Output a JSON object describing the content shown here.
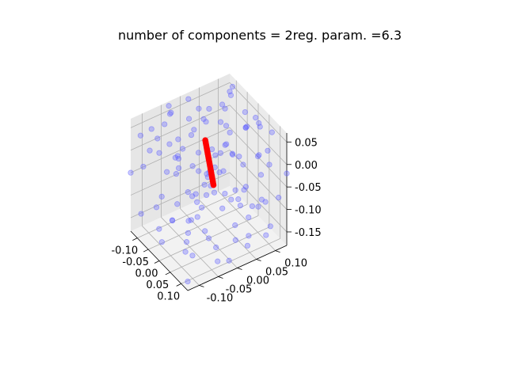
{
  "chart_data": {
    "type": "scatter",
    "projection": "3d",
    "title": "number of components = 2reg. param. =6.3",
    "grid": true,
    "xlim": [
      -0.13,
      0.13
    ],
    "ylim": [
      -0.13,
      0.13
    ],
    "zlim": [
      -0.18,
      0.07
    ],
    "x_ticks": [
      "-0.10",
      "-0.05",
      "0.00",
      "0.05",
      "0.10"
    ],
    "y_ticks": [
      "-0.10",
      "-0.05",
      "0.00",
      "0.05",
      "0.10"
    ],
    "z_ticks": [
      "-0.15",
      "-0.10",
      "-0.05",
      "0.00",
      "0.05"
    ],
    "colors": {
      "cloud": "#6464ff",
      "component": "#ff0000"
    },
    "series": [
      {
        "marker": "o",
        "color": "#6464ff",
        "alpha": 0.35,
        "points": [
          [
            -0.12,
            -0.11,
            0.03
          ],
          [
            -0.09,
            -0.12,
            -0.02
          ],
          [
            -0.06,
            -0.1,
            0.05
          ],
          [
            -0.03,
            -0.12,
            -0.08
          ],
          [
            0.0,
            -0.11,
            0.01
          ],
          [
            0.03,
            -0.1,
            -0.05
          ],
          [
            0.06,
            -0.12,
            0.04
          ],
          [
            0.09,
            -0.11,
            -0.1
          ],
          [
            0.12,
            -0.1,
            0.0
          ],
          [
            -0.11,
            -0.06,
            -0.12
          ],
          [
            -0.08,
            -0.07,
            0.06
          ],
          [
            -0.05,
            -0.05,
            -0.03
          ],
          [
            -0.02,
            -0.07,
            0.02
          ],
          [
            0.01,
            -0.06,
            -0.14
          ],
          [
            0.04,
            -0.05,
            0.05
          ],
          [
            0.07,
            -0.07,
            -0.07
          ],
          [
            0.1,
            -0.06,
            0.03
          ],
          [
            0.12,
            -0.05,
            -0.12
          ],
          [
            -0.12,
            -0.01,
            -0.06
          ],
          [
            -0.09,
            0.0,
            0.04
          ],
          [
            -0.06,
            -0.02,
            -0.1
          ],
          [
            -0.03,
            0.01,
            0.06
          ],
          [
            0.0,
            -0.01,
            -0.16
          ],
          [
            0.03,
            0.0,
            0.02
          ],
          [
            0.06,
            -0.02,
            -0.04
          ],
          [
            0.09,
            0.01,
            0.05
          ],
          [
            0.12,
            0.0,
            -0.09
          ],
          [
            -0.11,
            0.05,
            0.01
          ],
          [
            -0.08,
            0.04,
            -0.14
          ],
          [
            -0.05,
            0.06,
            0.03
          ],
          [
            -0.02,
            0.05,
            -0.06
          ],
          [
            0.01,
            0.04,
            0.06
          ],
          [
            0.04,
            0.06,
            -0.11
          ],
          [
            0.07,
            0.05,
            0.0
          ],
          [
            0.1,
            0.04,
            -0.03
          ],
          [
            0.12,
            0.06,
            0.04
          ],
          [
            -0.12,
            0.1,
            -0.09
          ],
          [
            -0.09,
            0.11,
            0.05
          ],
          [
            -0.06,
            0.09,
            -0.01
          ],
          [
            -0.03,
            0.11,
            -0.13
          ],
          [
            0.0,
            0.1,
            0.03
          ],
          [
            0.03,
            0.12,
            -0.07
          ],
          [
            0.06,
            0.1,
            0.06
          ],
          [
            0.09,
            0.11,
            -0.15
          ],
          [
            0.12,
            0.09,
            0.01
          ],
          [
            -0.1,
            -0.12,
            -0.13
          ],
          [
            -0.07,
            -0.09,
            -0.16
          ],
          [
            -0.04,
            -0.08,
            0.04
          ],
          [
            -0.01,
            -0.09,
            -0.11
          ],
          [
            0.02,
            -0.08,
            0.06
          ],
          [
            0.05,
            -0.09,
            -0.15
          ],
          [
            0.08,
            -0.08,
            -0.01
          ],
          [
            0.11,
            -0.09,
            0.06
          ],
          [
            -0.12,
            -0.03,
            0.05
          ],
          [
            -0.1,
            -0.03,
            -0.04
          ],
          [
            -0.07,
            -0.04,
            0.02
          ],
          [
            -0.04,
            -0.03,
            -0.15
          ],
          [
            -0.01,
            -0.04,
            0.06
          ],
          [
            0.02,
            -0.03,
            -0.09
          ],
          [
            0.05,
            -0.04,
            -0.02
          ],
          [
            0.08,
            -0.03,
            0.03
          ],
          [
            0.11,
            -0.04,
            -0.16
          ],
          [
            -0.11,
            0.02,
            -0.15
          ],
          [
            -0.08,
            0.02,
            0.06
          ],
          [
            -0.05,
            0.03,
            -0.07
          ],
          [
            -0.02,
            0.02,
            0.0
          ],
          [
            0.01,
            0.03,
            -0.12
          ],
          [
            0.04,
            0.02,
            0.04
          ],
          [
            0.07,
            0.03,
            -0.16
          ],
          [
            0.1,
            0.02,
            -0.05
          ],
          [
            -0.12,
            0.07,
            0.02
          ],
          [
            -0.09,
            0.08,
            -0.11
          ],
          [
            -0.06,
            0.07,
            0.06
          ],
          [
            -0.03,
            0.08,
            -0.04
          ],
          [
            0.0,
            0.07,
            -0.1
          ],
          [
            0.03,
            0.08,
            0.05
          ],
          [
            0.06,
            0.07,
            -0.13
          ],
          [
            0.09,
            0.08,
            0.02
          ],
          [
            0.12,
            0.07,
            -0.06
          ],
          [
            -0.1,
            0.12,
            0.06
          ],
          [
            -0.07,
            0.12,
            -0.08
          ],
          [
            -0.04,
            0.12,
            0.0
          ],
          [
            -0.01,
            0.12,
            -0.16
          ],
          [
            0.02,
            0.12,
            0.04
          ],
          [
            0.05,
            0.12,
            -0.12
          ],
          [
            0.08,
            0.12,
            0.05
          ],
          [
            0.11,
            0.12,
            -0.08
          ],
          [
            -0.13,
            -0.08,
            -0.02
          ],
          [
            0.13,
            -0.08,
            0.06
          ],
          [
            -0.13,
            0.08,
            -0.16
          ],
          [
            0.13,
            0.08,
            0.05
          ],
          [
            0.0,
            -0.13,
            0.06
          ],
          [
            0.0,
            0.13,
            -0.16
          ],
          [
            -0.13,
            -0.13,
            -0.05
          ],
          [
            0.13,
            0.13,
            -0.02
          ],
          [
            -0.13,
            0.13,
            0.03
          ],
          [
            0.13,
            -0.13,
            -0.16
          ],
          [
            -0.08,
            0.0,
            -0.18
          ],
          [
            0.08,
            0.0,
            0.07
          ],
          [
            0.0,
            0.0,
            -0.18
          ],
          [
            -0.04,
            -0.1,
            -0.17
          ],
          [
            0.04,
            0.1,
            0.07
          ],
          [
            -0.1,
            0.1,
            -0.17
          ],
          [
            0.1,
            -0.1,
            0.07
          ],
          [
            0.06,
            -0.13,
            -0.06
          ],
          [
            -0.06,
            0.13,
            0.02
          ],
          [
            0.13,
            0.03,
            -0.12
          ],
          [
            -0.13,
            -0.03,
            0.06
          ],
          [
            0.07,
            0.11,
            -0.18
          ],
          [
            -0.07,
            -0.11,
            0.07
          ],
          [
            0.11,
            -0.01,
            -0.17
          ],
          [
            -0.11,
            0.01,
            0.07
          ],
          [
            0.03,
            -0.06,
            -0.18
          ],
          [
            -0.03,
            0.06,
            0.07
          ],
          [
            0.09,
            0.05,
            -0.17
          ],
          [
            -0.09,
            -0.05,
            0.07
          ],
          [
            0.05,
            0.03,
            -0.08
          ],
          [
            -0.05,
            -0.01,
            0.04
          ]
        ]
      },
      {
        "marker": "o",
        "color": "#ff0000",
        "alpha": 1.0,
        "points": [
          [
            0.016,
            0.0033,
            -0.0547
          ],
          [
            0.015,
            0.003,
            -0.0513
          ],
          [
            0.014,
            0.0028,
            -0.0478
          ],
          [
            0.013,
            0.0025,
            -0.0444
          ],
          [
            0.012,
            0.0023,
            -0.041
          ],
          [
            0.011,
            0.002,
            -0.0376
          ],
          [
            0.01,
            0.0018,
            -0.0342
          ],
          [
            0.009,
            0.0015,
            -0.0307
          ],
          [
            0.008,
            0.0013,
            -0.0273
          ],
          [
            0.007,
            0.001,
            -0.0239
          ],
          [
            0.006,
            0.0008,
            -0.0205
          ],
          [
            0.005,
            0.0005,
            -0.0171
          ],
          [
            0.004,
            0.0003,
            -0.0136
          ],
          [
            0.003,
            0.0,
            -0.0102
          ],
          [
            0.002,
            -0.0002,
            -0.0068
          ],
          [
            0.001,
            -0.0005,
            -0.0034
          ],
          [
            0.0,
            -0.0008,
            0.0
          ],
          [
            -0.001,
            -0.001,
            0.0034
          ],
          [
            -0.002,
            -0.0013,
            0.0068
          ],
          [
            -0.003,
            -0.0015,
            0.0102
          ],
          [
            -0.004,
            -0.0018,
            0.0136
          ],
          [
            -0.005,
            -0.002,
            0.0171
          ],
          [
            -0.006,
            -0.0023,
            0.0205
          ],
          [
            -0.007,
            -0.0025,
            0.0239
          ],
          [
            -0.008,
            -0.0028,
            0.0273
          ],
          [
            -0.009,
            -0.003,
            0.0307
          ],
          [
            -0.01,
            -0.0033,
            0.0342
          ]
        ]
      }
    ]
  }
}
